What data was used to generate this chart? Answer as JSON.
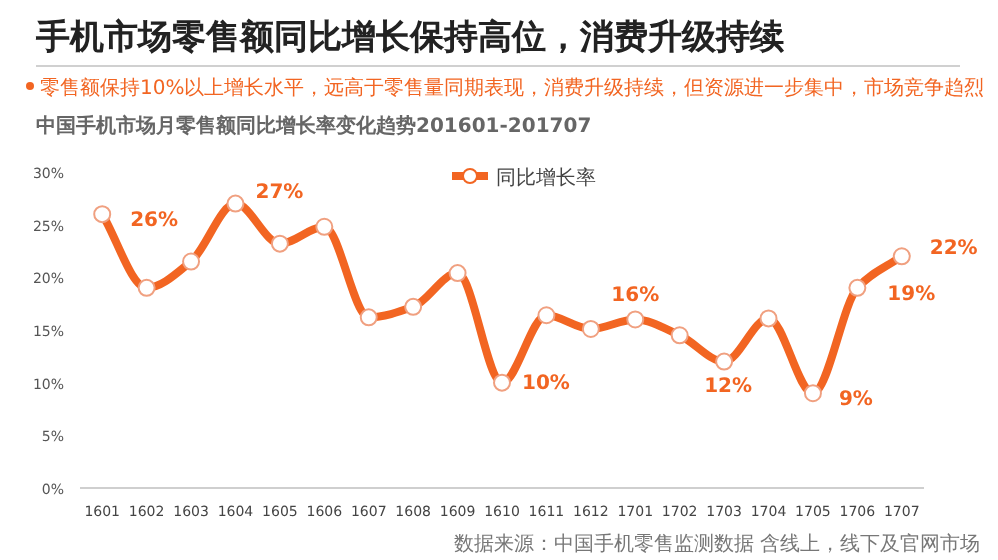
{
  "chart_data": {
    "type": "line",
    "title": "手机市场零售额同比增长保持高位，消费升级持续",
    "subtitle": "零售额保持10%以上增长水平，远高于零售量同期表现，消费升级持续，但资源进一步集中，市场竞争趋烈",
    "annotations": [
      "中国手机市场月零售额同比增长率变化趋势201601-201707",
      "数据来源：中国手机零售监测数据 含线上，线下及官网市场"
    ],
    "categories": [
      "1601",
      "1602",
      "1603",
      "1604",
      "1605",
      "1606",
      "1607",
      "1608",
      "1609",
      "1610",
      "1611",
      "1612",
      "1701",
      "1702",
      "1703",
      "1704",
      "1705",
      "1706",
      "1707"
    ],
    "series": [
      {
        "name": "同比增长率",
        "color": "#f26522",
        "values": [
          26,
          19,
          21.5,
          27,
          23.2,
          24.8,
          16.2,
          17.2,
          20.4,
          10,
          16.4,
          15.1,
          16,
          14.5,
          12,
          16.1,
          9,
          19,
          22
        ],
        "value_labels": [
          "26%",
          null,
          null,
          "27%",
          null,
          null,
          null,
          null,
          null,
          "10%",
          null,
          null,
          "16%",
          null,
          "12%",
          null,
          "9%",
          "19%",
          "22%"
        ]
      }
    ],
    "ylim": [
      0,
      30
    ],
    "yticks": [
      {
        "value": 0,
        "label": "0%"
      },
      {
        "value": 5,
        "label": "5%"
      },
      {
        "value": 10,
        "label": "10%"
      },
      {
        "value": 15,
        "label": "15%"
      },
      {
        "value": 20,
        "label": "20%"
      },
      {
        "value": 25,
        "label": "25%"
      },
      {
        "value": 30,
        "label": "30%"
      }
    ],
    "grid": false,
    "legend": "top",
    "marker": "circle",
    "line_style": "solid"
  }
}
